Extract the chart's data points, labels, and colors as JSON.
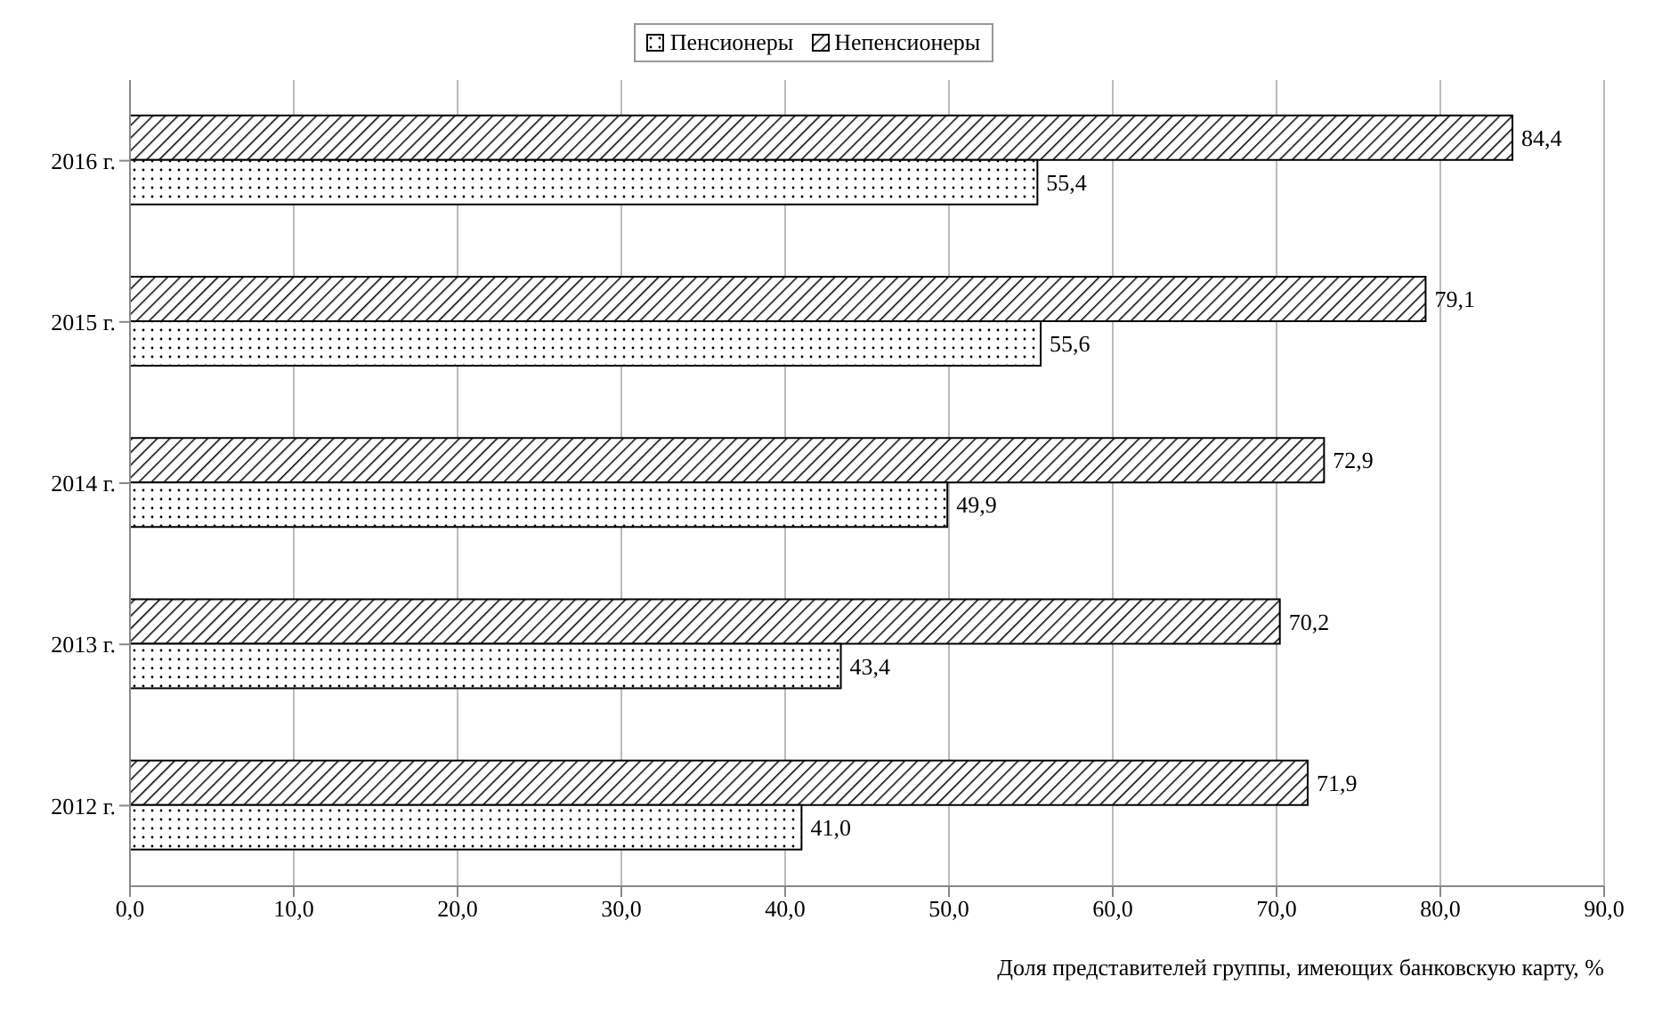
{
  "chart_data": {
    "type": "bar",
    "orientation": "horizontal",
    "xlabel": "Доля представителей группы, имеющих банковскую карту, %",
    "categories": [
      "2016 г.",
      "2015 г.",
      "2014 г.",
      "2013 г.",
      "2012 г."
    ],
    "series": [
      {
        "name": "Пенсионеры",
        "color": "#000000",
        "values": [
          55.4,
          55.6,
          49.9,
          43.4,
          41.0
        ],
        "value_labels": [
          "55,4",
          "55,6",
          "49,9",
          "43,4",
          "41,0"
        ]
      },
      {
        "name": "Непенсионеры",
        "color": "#000000",
        "values": [
          84.4,
          79.1,
          72.9,
          70.2,
          71.9
        ],
        "value_labels": [
          "84,4",
          "79,1",
          "72,9",
          "70,2",
          "71,9"
        ]
      }
    ],
    "xlim": [
      0,
      90
    ],
    "xticks": [
      {
        "value": 0,
        "label": "0,0"
      },
      {
        "value": 10,
        "label": "10,0"
      },
      {
        "value": 20,
        "label": "20,0"
      },
      {
        "value": 30,
        "label": "30,0"
      },
      {
        "value": 40,
        "label": "40,0"
      },
      {
        "value": 50,
        "label": "50,0"
      },
      {
        "value": 60,
        "label": "60,0"
      },
      {
        "value": 70,
        "label": "70,0"
      },
      {
        "value": 80,
        "label": "80,0"
      },
      {
        "value": 90,
        "label": "90,0"
      }
    ],
    "grid": "x",
    "legend": "top"
  }
}
